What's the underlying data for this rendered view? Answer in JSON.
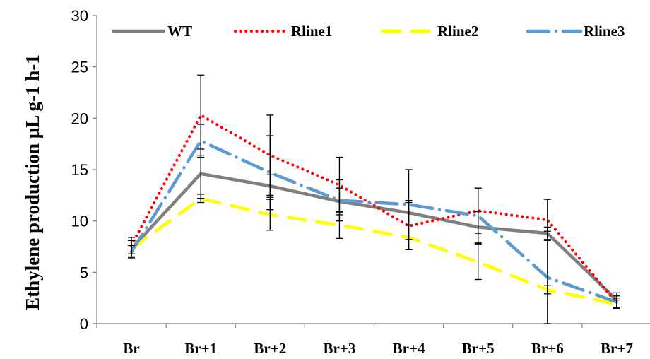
{
  "chart_data": {
    "type": "line",
    "title": "",
    "xlabel": "",
    "ylabel": "Ethylene production µL g-1 h-1",
    "ylim": [
      0,
      30
    ],
    "yticks": [
      0,
      5,
      10,
      15,
      20,
      25,
      30
    ],
    "categories": [
      "Br",
      "Br+1",
      "Br+2",
      "Br+3",
      "Br+4",
      "Br+5",
      "Br+6",
      "Br+7"
    ],
    "grid": false,
    "legend_position": "top",
    "series": [
      {
        "name": "WT",
        "style": "solid",
        "color": "#7f7f7f",
        "values": [
          7.3,
          14.6,
          13.4,
          11.9,
          10.8,
          9.4,
          8.8,
          2.3
        ],
        "errors": [
          0.8,
          2.4,
          1.1,
          1.3,
          1.2,
          1.5,
          0.6,
          0.7
        ]
      },
      {
        "name": "Rline1",
        "style": "dotted",
        "color": "#ff0000",
        "values": [
          7.6,
          20.3,
          16.4,
          13.5,
          9.5,
          11.0,
          10.1,
          2.0
        ],
        "errors": [
          0.8,
          3.9,
          3.9,
          2.7,
          2.3,
          2.2,
          2.0,
          0.5
        ]
      },
      {
        "name": "Rline2",
        "style": "dashed",
        "color": "#ffff00",
        "values": [
          7.3,
          12.2,
          10.6,
          9.6,
          8.4,
          6.0,
          3.3,
          1.9
        ],
        "errors": [
          0.8,
          0.4,
          1.5,
          1.3,
          1.2,
          1.7,
          0.4,
          0.4
        ]
      },
      {
        "name": "Rline3",
        "style": "dash-dot",
        "color": "#5b9bd5",
        "values": [
          7.0,
          17.8,
          14.7,
          12.0,
          11.6,
          10.5,
          4.5,
          2.1
        ],
        "errors": [
          0.6,
          1.6,
          3.6,
          2.0,
          3.4,
          2.7,
          4.5,
          0.6
        ]
      }
    ]
  }
}
